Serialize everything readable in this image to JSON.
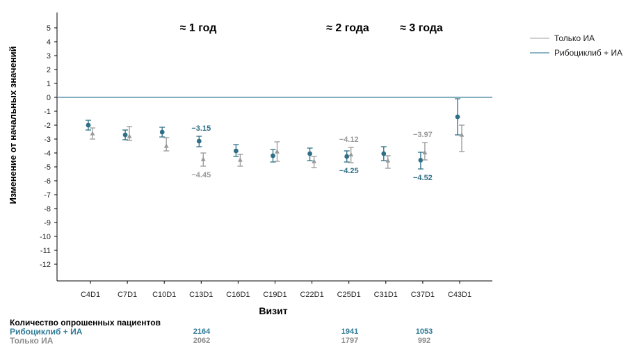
{
  "chart_data": {
    "type": "scatter",
    "xlabel": "Визит",
    "ylabel": "Изменение от начальных значений",
    "ylim": [
      -13,
      6
    ],
    "yticks": [
      5,
      4,
      3,
      2,
      1,
      0,
      -1,
      -2,
      -3,
      -4,
      -5,
      -6,
      -7,
      -8,
      -9,
      -10,
      -11,
      -12
    ],
    "categories": [
      "C4D1",
      "C7D1",
      "C10D1",
      "C13D1",
      "C16D1",
      "C19D1",
      "C22D1",
      "C25D1",
      "C31D1",
      "C37D1",
      "C43D1"
    ],
    "reference_line": 0,
    "annotations": [
      "≈ 1 год",
      "≈ 2 года",
      "≈ 3 года"
    ],
    "legend_position": "top-right",
    "series": [
      {
        "name": "Только ИА",
        "color": "#999999",
        "marker": "triangle",
        "values": [
          -2.6,
          -2.8,
          -3.5,
          -4.45,
          -4.5,
          -3.9,
          -4.6,
          -4.12,
          -4.55,
          -3.97,
          -2.7
        ],
        "lower": [
          -3.0,
          -3.1,
          -3.85,
          -4.95,
          -4.95,
          -4.6,
          -5.05,
          -4.7,
          -5.1,
          -4.5,
          -3.9
        ],
        "upper": [
          -2.2,
          -2.1,
          -2.9,
          -4.0,
          -4.1,
          -3.2,
          -4.25,
          -3.6,
          -4.2,
          -3.25,
          -2.0
        ]
      },
      {
        "name": "Рибоциклиб + ИА",
        "color": "#2e6f86",
        "marker": "circle",
        "values": [
          -2.0,
          -2.7,
          -2.5,
          -3.15,
          -3.85,
          -4.2,
          -4.05,
          -4.25,
          -4.05,
          -4.52,
          -1.4
        ],
        "lower": [
          -2.35,
          -3.05,
          -2.85,
          -3.55,
          -4.25,
          -4.65,
          -4.55,
          -4.65,
          -4.55,
          -5.15,
          -2.7
        ],
        "upper": [
          -1.65,
          -2.35,
          -2.15,
          -2.8,
          -3.4,
          -3.75,
          -3.65,
          -3.85,
          -3.55,
          -3.95,
          -0.1
        ]
      }
    ],
    "data_labels": [
      {
        "series": "Рибоциклиб + ИА",
        "category": "C13D1",
        "text": "−3.15",
        "position": "above"
      },
      {
        "series": "Только ИА",
        "category": "C13D1",
        "text": "−4.45",
        "position": "below"
      },
      {
        "series": "Только ИА",
        "category": "C25D1",
        "text": "−4.12",
        "position": "above"
      },
      {
        "series": "Рибоциклиб + ИА",
        "category": "C25D1",
        "text": "−4.25",
        "position": "below"
      },
      {
        "series": "Только ИА",
        "category": "C37D1",
        "text": "−3.97",
        "position": "above"
      },
      {
        "series": "Рибоциклиб + ИА",
        "category": "C37D1",
        "text": "−4.52",
        "position": "below"
      }
    ]
  },
  "counts": {
    "title": "Количество опрошенных пациентов",
    "ribo": {
      "label": "Рибоциклиб + ИА",
      "c13": "2164",
      "c25": "1941",
      "c37": "1053"
    },
    "ai": {
      "label": "Только ИА",
      "c13": "2062",
      "c25": "1797",
      "c37": "992"
    }
  }
}
